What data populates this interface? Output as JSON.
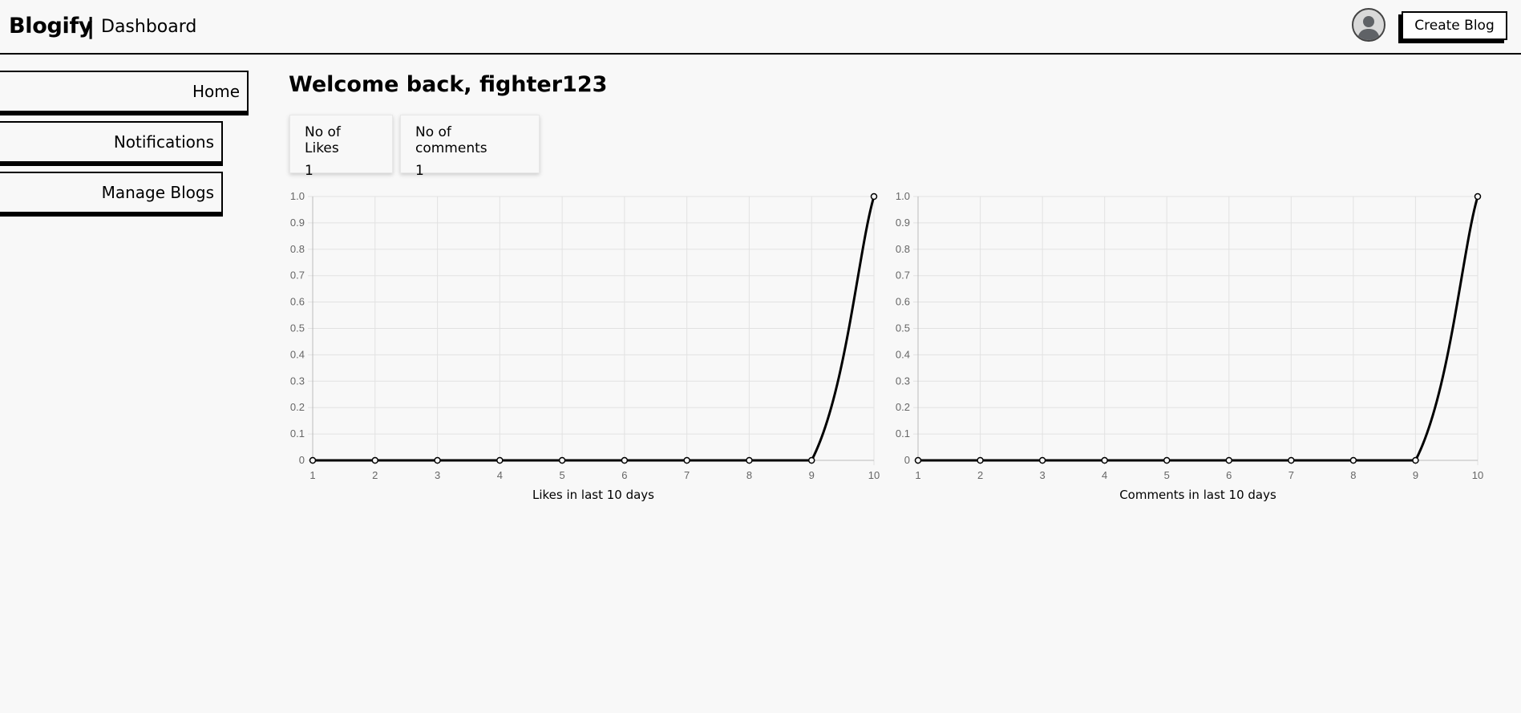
{
  "header": {
    "brand": "Blogify",
    "separator": "|",
    "page": "Dashboard",
    "create_button": "Create Blog"
  },
  "sidebar": {
    "items": [
      {
        "label": "Home"
      },
      {
        "label": "Notifications"
      },
      {
        "label": "Manage Blogs"
      }
    ]
  },
  "main": {
    "welcome": "Welcome back, fighter123",
    "stats": [
      {
        "label": "No of Likes",
        "value": "1"
      },
      {
        "label": "No of comments",
        "value": "1"
      }
    ]
  },
  "chart_data": [
    {
      "type": "line",
      "x": [
        1,
        2,
        3,
        4,
        5,
        6,
        7,
        8,
        9,
        10
      ],
      "series": [
        {
          "values": [
            0,
            0,
            0,
            0,
            0,
            0,
            0,
            0,
            0,
            1
          ]
        }
      ],
      "xlabel": "Likes in last 10 days",
      "ylabel": "",
      "ylim": [
        0,
        1
      ],
      "yticks": [
        "0",
        "0.1",
        "0.2",
        "0.3",
        "0.4",
        "0.5",
        "0.6",
        "0.7",
        "0.8",
        "0.9",
        "1.0"
      ],
      "grid": true,
      "color": "#000000"
    },
    {
      "type": "line",
      "x": [
        1,
        2,
        3,
        4,
        5,
        6,
        7,
        8,
        9,
        10
      ],
      "series": [
        {
          "values": [
            0,
            0,
            0,
            0,
            0,
            0,
            0,
            0,
            0,
            1
          ]
        }
      ],
      "xlabel": "Comments in last 10 days",
      "ylabel": "",
      "ylim": [
        0,
        1
      ],
      "yticks": [
        "0",
        "0.1",
        "0.2",
        "0.3",
        "0.4",
        "0.5",
        "0.6",
        "0.7",
        "0.8",
        "0.9",
        "1.0"
      ],
      "grid": true,
      "color": "#000000"
    }
  ]
}
